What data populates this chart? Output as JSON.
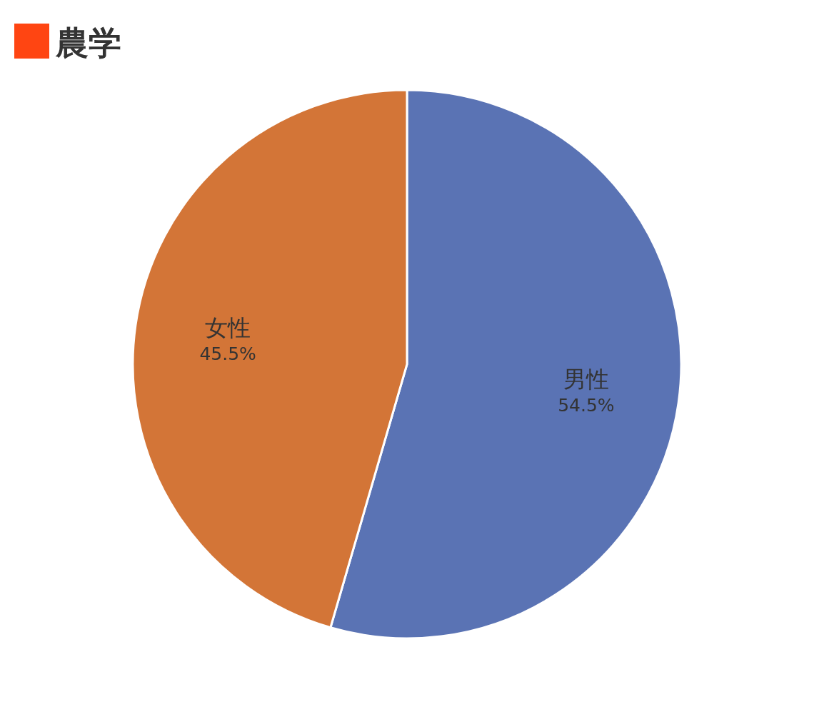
{
  "chart_data": {
    "type": "pie",
    "title": "農学",
    "categories": [
      "男性",
      "女性"
    ],
    "values": [
      54.5,
      45.5
    ],
    "colors": [
      "#5a73b4",
      "#d37537"
    ],
    "value_labels": [
      "54.5%",
      "45.5%"
    ]
  }
}
